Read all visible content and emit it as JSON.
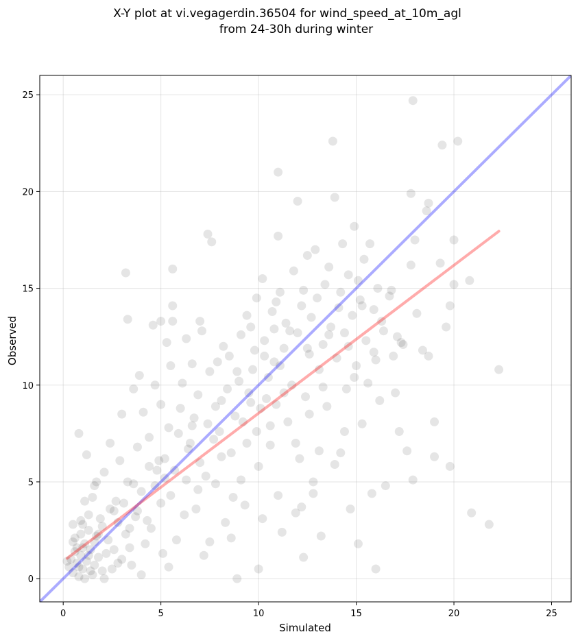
{
  "chart_data": {
    "type": "scatter",
    "title": "X-Y plot at vi.vegagerdin.36504 for wind_speed_at_10m_agl",
    "subtitle": "from 24-30h during winter",
    "xlabel": "Simulated",
    "ylabel": "Observed",
    "xlim": [
      -1.2,
      26.0
    ],
    "ylim": [
      -1.2,
      26.0
    ],
    "xticks": [
      0,
      5,
      10,
      15,
      20,
      25
    ],
    "yticks": [
      0,
      5,
      10,
      15,
      20,
      25
    ],
    "grid": true,
    "marker_color": "#000000",
    "identity_line": {
      "x": [
        -1.2,
        26.0
      ],
      "y": [
        -1.2,
        26.0
      ],
      "color": "#0000ff"
    },
    "fit_line": {
      "x": [
        0.2,
        22.3
      ],
      "y": [
        1.05,
        17.95
      ],
      "color": "#ff0000"
    },
    "points": [
      [
        0.5,
        0.3
      ],
      [
        0.7,
        0.8
      ],
      [
        0.9,
        1.2
      ],
      [
        1.0,
        0.5
      ],
      [
        1.1,
        1.8
      ],
      [
        0.6,
        2.1
      ],
      [
        0.8,
        0.1
      ],
      [
        1.2,
        0.9
      ],
      [
        1.4,
        1.5
      ],
      [
        0.4,
        1.0
      ],
      [
        1.5,
        0.2
      ],
      [
        1.3,
        2.5
      ],
      [
        0.9,
        3.0
      ],
      [
        0.7,
        1.6
      ],
      [
        1.6,
        0.7
      ],
      [
        1.8,
        1.1
      ],
      [
        2.0,
        0.4
      ],
      [
        0.3,
        0.6
      ],
      [
        1.0,
        2.8
      ],
      [
        1.7,
        2.2
      ],
      [
        2.2,
        1.3
      ],
      [
        2.5,
        0.5
      ],
      [
        0.5,
        1.9
      ],
      [
        1.1,
        0.0
      ],
      [
        1.9,
        3.1
      ],
      [
        0.8,
        7.5
      ],
      [
        1.2,
        6.4
      ],
      [
        1.5,
        4.2
      ],
      [
        2.1,
        5.5
      ],
      [
        2.8,
        2.9
      ],
      [
        3.0,
        1.0
      ],
      [
        2.4,
        3.6
      ],
      [
        1.3,
        3.3
      ],
      [
        1.6,
        4.8
      ],
      [
        2.7,
        4.0
      ],
      [
        3.2,
        2.3
      ],
      [
        3.5,
        0.7
      ],
      [
        2.9,
        6.1
      ],
      [
        3.3,
        5.0
      ],
      [
        3.7,
        3.2
      ],
      [
        4.0,
        4.5
      ],
      [
        4.2,
        1.8
      ],
      [
        3.8,
        6.8
      ],
      [
        4.5,
        2.6
      ],
      [
        4.1,
        8.6
      ],
      [
        3.6,
        9.8
      ],
      [
        3.9,
        10.5
      ],
      [
        4.4,
        7.3
      ],
      [
        4.8,
        5.6
      ],
      [
        5.0,
        3.9
      ],
      [
        5.2,
        6.2
      ],
      [
        5.5,
        4.3
      ],
      [
        5.4,
        7.8
      ],
      [
        5.8,
        2.0
      ],
      [
        5.0,
        9.0
      ],
      [
        5.3,
        12.2
      ],
      [
        5.6,
        14.1
      ],
      [
        5.6,
        16.0
      ],
      [
        3.2,
        15.8
      ],
      [
        3.3,
        13.4
      ],
      [
        4.6,
        13.1
      ],
      [
        5.0,
        13.3
      ],
      [
        5.6,
        13.3
      ],
      [
        6.0,
        8.8
      ],
      [
        6.3,
        5.1
      ],
      [
        6.1,
        10.1
      ],
      [
        6.5,
        7.0
      ],
      [
        6.8,
        3.6
      ],
      [
        6.6,
        11.1
      ],
      [
        6.9,
        9.5
      ],
      [
        7.0,
        6.0
      ],
      [
        7.2,
        1.2
      ],
      [
        7.4,
        8.0
      ],
      [
        7.1,
        12.8
      ],
      [
        7.5,
        10.7
      ],
      [
        7.6,
        17.4
      ],
      [
        7.4,
        17.8
      ],
      [
        7.8,
        4.9
      ],
      [
        8.0,
        7.6
      ],
      [
        8.1,
        9.2
      ],
      [
        8.3,
        2.9
      ],
      [
        8.5,
        11.5
      ],
      [
        8.2,
        12.0
      ],
      [
        8.6,
        6.5
      ],
      [
        8.8,
        8.4
      ],
      [
        8.9,
        0.0
      ],
      [
        9.0,
        10.2
      ],
      [
        9.1,
        12.6
      ],
      [
        9.3,
        3.8
      ],
      [
        9.4,
        7.0
      ],
      [
        9.5,
        9.6
      ],
      [
        9.6,
        13.0
      ],
      [
        9.8,
        11.8
      ],
      [
        9.9,
        14.5
      ],
      [
        10.0,
        0.5
      ],
      [
        10.0,
        5.8
      ],
      [
        10.1,
        8.8
      ],
      [
        10.2,
        15.5
      ],
      [
        10.3,
        12.3
      ],
      [
        10.5,
        10.4
      ],
      [
        10.6,
        6.9
      ],
      [
        10.7,
        13.8
      ],
      [
        10.8,
        11.2
      ],
      [
        10.9,
        9.0
      ],
      [
        11.0,
        17.7
      ],
      [
        11.0,
        4.3
      ],
      [
        11.1,
        14.8
      ],
      [
        11.2,
        2.4
      ],
      [
        11.3,
        11.9
      ],
      [
        11.4,
        13.2
      ],
      [
        11.5,
        8.1
      ],
      [
        11.0,
        21.0
      ],
      [
        11.7,
        10.0
      ],
      [
        11.8,
        15.9
      ],
      [
        11.9,
        3.4
      ],
      [
        12.0,
        12.7
      ],
      [
        12.1,
        6.2
      ],
      [
        12.2,
        14.1
      ],
      [
        12.3,
        1.1
      ],
      [
        12.4,
        9.4
      ],
      [
        12.5,
        16.7
      ],
      [
        12.6,
        11.6
      ],
      [
        12.7,
        13.5
      ],
      [
        12.8,
        5.0
      ],
      [
        12.9,
        17.0
      ],
      [
        12.0,
        19.5
      ],
      [
        13.0,
        14.5
      ],
      [
        13.1,
        10.8
      ],
      [
        13.2,
        2.2
      ],
      [
        13.3,
        12.1
      ],
      [
        13.4,
        15.2
      ],
      [
        13.5,
        8.9
      ],
      [
        13.6,
        16.1
      ],
      [
        13.7,
        13.0
      ],
      [
        13.8,
        22.6
      ],
      [
        13.9,
        19.7
      ],
      [
        14.0,
        11.4
      ],
      [
        14.1,
        14.0
      ],
      [
        14.2,
        6.5
      ],
      [
        14.3,
        17.3
      ],
      [
        14.4,
        12.7
      ],
      [
        14.5,
        9.8
      ],
      [
        14.6,
        15.7
      ],
      [
        14.7,
        3.6
      ],
      [
        14.8,
        13.6
      ],
      [
        14.9,
        18.2
      ],
      [
        15.0,
        11.0
      ],
      [
        15.1,
        1.8
      ],
      [
        15.2,
        14.4
      ],
      [
        15.3,
        8.0
      ],
      [
        15.4,
        16.5
      ],
      [
        15.5,
        12.3
      ],
      [
        15.6,
        10.1
      ],
      [
        15.7,
        17.3
      ],
      [
        15.8,
        4.4
      ],
      [
        15.9,
        13.9
      ],
      [
        16.0,
        0.5
      ],
      [
        16.1,
        15.0
      ],
      [
        16.2,
        9.2
      ],
      [
        16.4,
        12.8
      ],
      [
        16.5,
        4.8
      ],
      [
        16.7,
        14.6
      ],
      [
        16.9,
        11.5
      ],
      [
        17.0,
        9.6
      ],
      [
        17.2,
        7.6
      ],
      [
        17.4,
        12.1
      ],
      [
        17.6,
        6.6
      ],
      [
        17.8,
        16.2
      ],
      [
        17.9,
        24.7
      ],
      [
        18.0,
        17.5
      ],
      [
        17.8,
        19.9
      ],
      [
        17.9,
        5.1
      ],
      [
        18.1,
        13.7
      ],
      [
        18.4,
        11.8
      ],
      [
        18.6,
        19.0
      ],
      [
        18.7,
        19.4
      ],
      [
        18.7,
        11.5
      ],
      [
        19.0,
        8.1
      ],
      [
        19.0,
        6.3
      ],
      [
        19.3,
        16.3
      ],
      [
        19.4,
        22.4
      ],
      [
        19.6,
        13.0
      ],
      [
        19.8,
        5.8
      ],
      [
        19.8,
        14.1
      ],
      [
        20.0,
        17.5
      ],
      [
        20.0,
        15.2
      ],
      [
        20.2,
        22.6
      ],
      [
        20.8,
        15.4
      ],
      [
        20.9,
        3.4
      ],
      [
        21.8,
        2.8
      ],
      [
        22.3,
        10.8
      ],
      [
        0.2,
        0.9
      ],
      [
        0.6,
        1.4
      ],
      [
        1.4,
        0.4
      ],
      [
        2.3,
        2.0
      ],
      [
        2.0,
        2.7
      ],
      [
        3.1,
        3.9
      ],
      [
        3.4,
        1.6
      ],
      [
        4.3,
        3.0
      ],
      [
        4.7,
        4.8
      ],
      [
        5.1,
        1.3
      ],
      [
        5.7,
        5.6
      ],
      [
        6.2,
        3.3
      ],
      [
        6.7,
        8.3
      ],
      [
        7.3,
        5.3
      ],
      [
        7.7,
        7.2
      ],
      [
        8.4,
        9.8
      ],
      [
        8.7,
        4.2
      ],
      [
        9.2,
        8.1
      ],
      [
        9.7,
        10.8
      ],
      [
        10.4,
        9.3
      ],
      [
        11.6,
        12.8
      ],
      [
        12.6,
        8.5
      ],
      [
        13.3,
        9.9
      ],
      [
        14.6,
        12.0
      ],
      [
        15.1,
        15.4
      ],
      [
        16.3,
        13.3
      ],
      [
        17.1,
        12.5
      ],
      [
        6.4,
        6.7
      ],
      [
        7.9,
        11.2
      ],
      [
        9.4,
        13.6
      ],
      [
        10.9,
        14.3
      ],
      [
        12.3,
        14.9
      ],
      [
        5.9,
        7.5
      ],
      [
        4.9,
        6.1
      ],
      [
        3.6,
        4.9
      ],
      [
        2.6,
        3.5
      ],
      [
        1.8,
        2.3
      ],
      [
        8.1,
        6.3
      ],
      [
        9.9,
        7.6
      ],
      [
        11.3,
        9.6
      ],
      [
        6.9,
        4.6
      ],
      [
        8.6,
        2.1
      ],
      [
        10.2,
        3.1
      ],
      [
        7.5,
        1.9
      ],
      [
        5.4,
        0.6
      ],
      [
        4.0,
        0.2
      ],
      [
        2.8,
        0.8
      ],
      [
        12.8,
        4.4
      ],
      [
        13.9,
        5.9
      ],
      [
        14.4,
        7.6
      ],
      [
        15.9,
        11.7
      ],
      [
        16.8,
        14.9
      ],
      [
        2.4,
        7.0
      ],
      [
        3.0,
        8.5
      ],
      [
        4.7,
        10.0
      ],
      [
        5.5,
        11.0
      ],
      [
        6.3,
        12.4
      ],
      [
        7.0,
        13.3
      ],
      [
        1.1,
        4.0
      ],
      [
        1.7,
        5.0
      ],
      [
        0.9,
        2.3
      ],
      [
        1.3,
        1.2
      ],
      [
        0.8,
        0.6
      ],
      [
        1.0,
        1.6
      ],
      [
        1.6,
        1.9
      ],
      [
        0.5,
        2.8
      ],
      [
        2.1,
        0.0
      ],
      [
        2.6,
        1.5
      ],
      [
        3.4,
        2.6
      ],
      [
        9.1,
        5.1
      ],
      [
        10.6,
        7.9
      ],
      [
        11.9,
        7.0
      ],
      [
        13.1,
        6.6
      ],
      [
        12.2,
        3.7
      ],
      [
        14.9,
        10.4
      ],
      [
        16.0,
        11.3
      ],
      [
        17.3,
        12.2
      ],
      [
        10.3,
        11.5
      ],
      [
        11.1,
        11.0
      ],
      [
        9.6,
        9.1
      ],
      [
        8.9,
        10.7
      ],
      [
        10.8,
        12.9
      ],
      [
        12.5,
        11.9
      ],
      [
        13.6,
        12.6
      ],
      [
        14.2,
        14.8
      ],
      [
        15.3,
        14.1
      ],
      [
        7.8,
        8.9
      ],
      [
        6.6,
        7.9
      ],
      [
        5.2,
        5.2
      ],
      [
        4.4,
        5.8
      ],
      [
        3.8,
        3.5
      ]
    ]
  }
}
